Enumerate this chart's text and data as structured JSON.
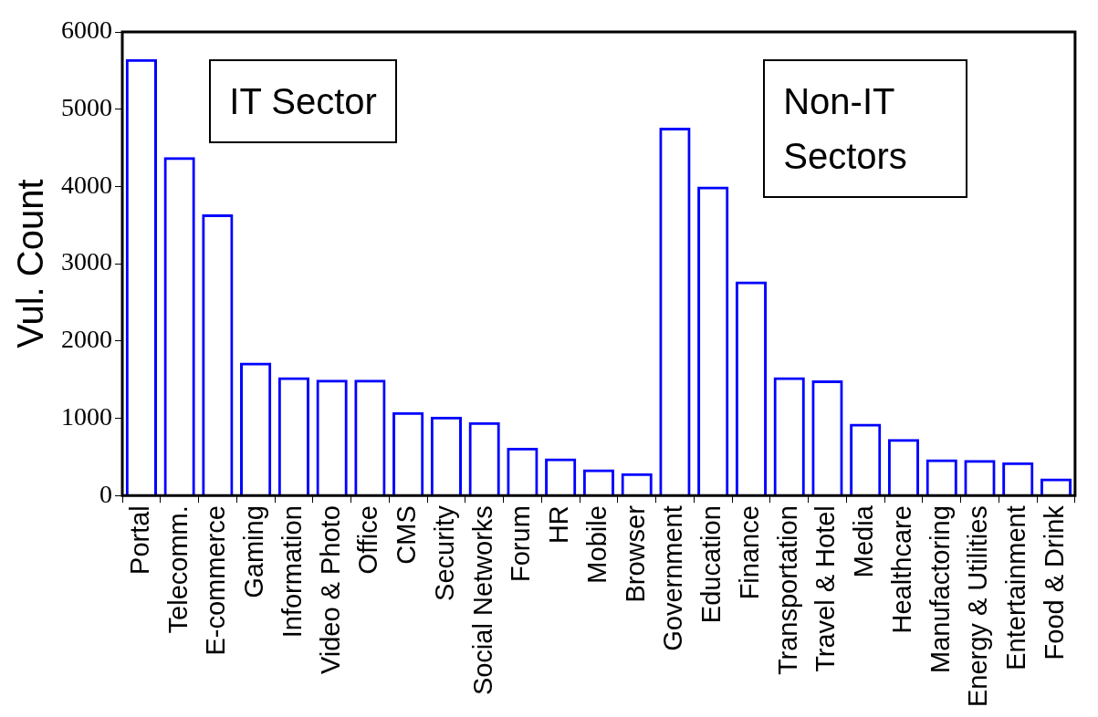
{
  "chart_data": {
    "type": "bar",
    "ylabel": "Vul. Count",
    "categories": [
      "Portal",
      "Telecomm.",
      "E-commerce",
      "Gaming",
      "Information",
      "Video & Photo",
      "Office",
      "CMS",
      "Security",
      "Social Networks",
      "Forum",
      "HR",
      "Mobile",
      "Browser",
      "Government",
      "Education",
      "Finance",
      "Transportation",
      "Travel & Hotel",
      "Media",
      "Healthcare",
      "Manufactoring",
      "Energy & Utilities",
      "Entertainment",
      "Food & Drink"
    ],
    "values": [
      5650,
      4380,
      3640,
      1720,
      1530,
      1500,
      1500,
      1080,
      1020,
      950,
      620,
      480,
      340,
      290,
      4760,
      4000,
      2770,
      1530,
      1490,
      930,
      730,
      470,
      460,
      430,
      220
    ],
    "color": "#0000ff",
    "ylim": [
      0,
      6000
    ],
    "yticks": [
      0,
      1000,
      2000,
      3000,
      4000,
      5000,
      6000
    ],
    "annotations": [
      "IT Sector",
      "Non-IT Sectors"
    ]
  }
}
